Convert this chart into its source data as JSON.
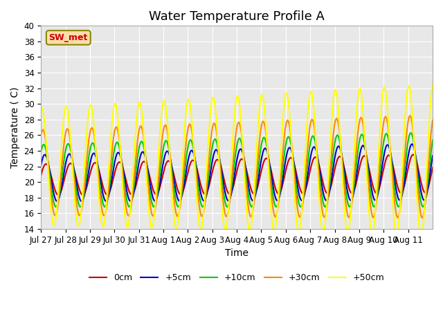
{
  "title": "Water Temperature Profile A",
  "xlabel": "Time",
  "ylabel": "Temperature ( C)",
  "ylim": [
    14,
    40
  ],
  "yticks": [
    14,
    16,
    18,
    20,
    22,
    24,
    26,
    28,
    30,
    32,
    34,
    36,
    38,
    40
  ],
  "xtick_labels": [
    "Jul 27",
    "Jul 28",
    "Jul 29",
    "Jul 30",
    "Jul 31",
    "Aug 1",
    "Aug 2",
    "Aug 3",
    "Aug 4",
    "Aug 5",
    "Aug 6",
    "Aug 7",
    "Aug 8",
    "Aug 9",
    "Aug 10",
    "Aug 11"
  ],
  "series_colors": [
    "#cc0000",
    "#0000cc",
    "#00cc00",
    "#ff8800",
    "#ffff00"
  ],
  "series_labels": [
    "0cm",
    "+5cm",
    "+10cm",
    "+30cm",
    "+50cm"
  ],
  "series_linewidths": [
    1.5,
    1.5,
    1.5,
    1.5,
    1.5
  ],
  "legend_label": "SW_met",
  "legend_color": "#cc0000",
  "legend_bg": "#ffddaa",
  "legend_edge": "#888800",
  "background_color": "#ffffff",
  "plot_bg_color": "#e8e8e8",
  "grid_color": "#ffffff",
  "title_fontsize": 13,
  "axis_fontsize": 10,
  "tick_fontsize": 8.5,
  "n_days": 16,
  "n_points_per_day": 24
}
